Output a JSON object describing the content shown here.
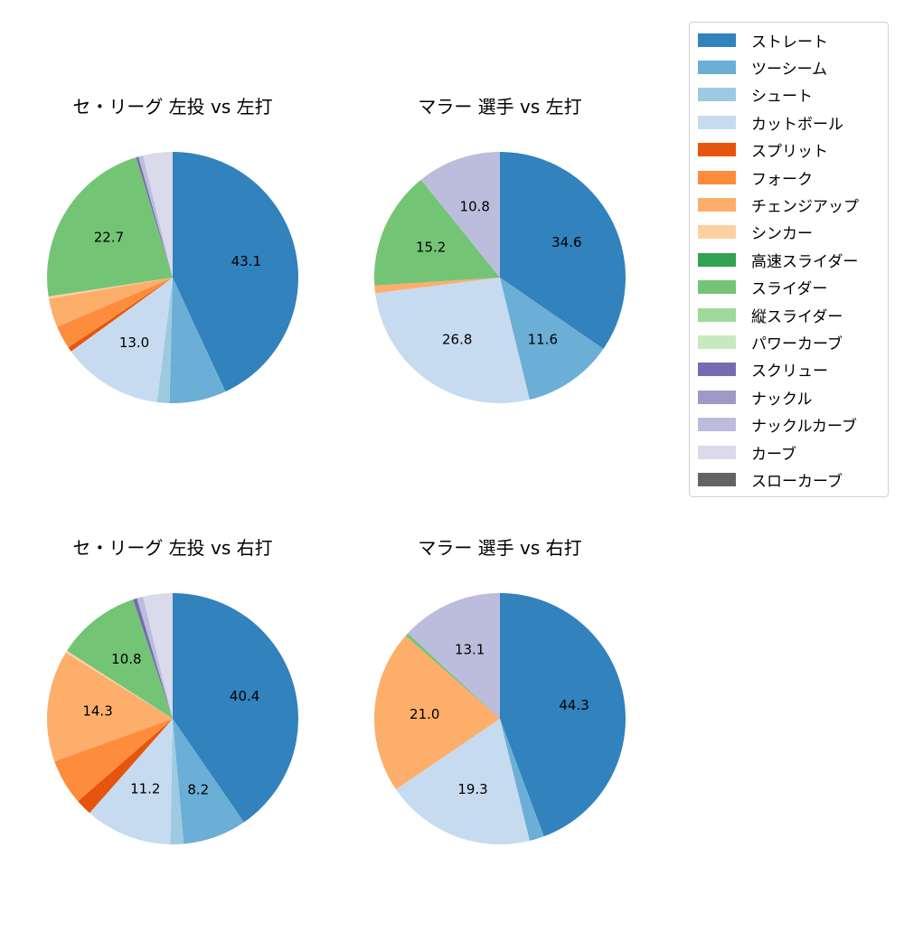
{
  "chart_data": [
    {
      "type": "pie",
      "title": "セ・リーグ 左投 vs 左打",
      "categories": [
        "ストレート",
        "ツーシーム",
        "シュート",
        "カットボール",
        "スプリット",
        "フォーク",
        "チェンジアップ",
        "シンカー",
        "スライダー",
        "スクリュー",
        "ナックルカーブ",
        "カーブ"
      ],
      "values": [
        43.1,
        7.3,
        1.6,
        13.0,
        0.6,
        3.0,
        3.7,
        0.3,
        22.7,
        0.3,
        0.6,
        3.8
      ],
      "labels_shown": [
        "43.1",
        "",
        "",
        "13.0",
        "",
        "",
        "",
        "",
        "22.7",
        "",
        "",
        ""
      ],
      "start_angle": 90,
      "direction": "clockwise"
    },
    {
      "type": "pie",
      "title": "マラー 選手 vs 左打",
      "categories": [
        "ストレート",
        "ツーシーム",
        "カットボール",
        "チェンジアップ",
        "スライダー",
        "ナックルカーブ"
      ],
      "values": [
        34.6,
        11.6,
        26.8,
        1.0,
        15.2,
        10.8
      ],
      "labels_shown": [
        "34.6",
        "11.6",
        "26.8",
        "",
        "15.2",
        "10.8"
      ],
      "start_angle": 90,
      "direction": "clockwise"
    },
    {
      "type": "pie",
      "title": "セ・リーグ 左投 vs 右打",
      "categories": [
        "ストレート",
        "ツーシーム",
        "シュート",
        "カットボール",
        "スプリット",
        "フォーク",
        "チェンジアップ",
        "シンカー",
        "スライダー",
        "スクリュー",
        "ナックルカーブ",
        "カーブ"
      ],
      "values": [
        40.4,
        8.2,
        1.7,
        11.2,
        2.1,
        5.9,
        14.3,
        0.3,
        10.8,
        0.5,
        0.8,
        3.8
      ],
      "labels_shown": [
        "40.4",
        "8.2",
        "",
        "11.2",
        "",
        "",
        "14.3",
        "",
        "10.8",
        "",
        "",
        ""
      ],
      "start_angle": 90,
      "direction": "clockwise"
    },
    {
      "type": "pie",
      "title": "マラー 選手 vs 右打",
      "categories": [
        "ストレート",
        "ツーシーム",
        "カットボール",
        "チェンジアップ",
        "スライダー",
        "ナックルカーブ"
      ],
      "values": [
        44.3,
        1.9,
        19.3,
        21.0,
        0.4,
        13.1
      ],
      "labels_shown": [
        "44.3",
        "",
        "19.3",
        "21.0",
        "",
        "13.1"
      ],
      "start_angle": 90,
      "direction": "clockwise"
    }
  ],
  "legend": {
    "items": [
      {
        "label": "ストレート",
        "color": "#3182bd"
      },
      {
        "label": "ツーシーム",
        "color": "#6baed6"
      },
      {
        "label": "シュート",
        "color": "#9ecae1"
      },
      {
        "label": "カットボール",
        "color": "#c6dbef"
      },
      {
        "label": "スプリット",
        "color": "#e6550d"
      },
      {
        "label": "フォーク",
        "color": "#fd8d3c"
      },
      {
        "label": "チェンジアップ",
        "color": "#fdae6b"
      },
      {
        "label": "シンカー",
        "color": "#fdd0a2"
      },
      {
        "label": "高速スライダー",
        "color": "#31a354"
      },
      {
        "label": "スライダー",
        "color": "#74c476"
      },
      {
        "label": "縦スライダー",
        "color": "#a1d99b"
      },
      {
        "label": "パワーカーブ",
        "color": "#c7e9c0"
      },
      {
        "label": "スクリュー",
        "color": "#756bb1"
      },
      {
        "label": "ナックル",
        "color": "#9e9ac8"
      },
      {
        "label": "ナックルカーブ",
        "color": "#bcbddc"
      },
      {
        "label": "カーブ",
        "color": "#dadaeb"
      },
      {
        "label": "スローカーブ",
        "color": "#636363"
      }
    ]
  },
  "panels": [
    {
      "title": "セ・リーグ 左投 vs 左打"
    },
    {
      "title": "マラー 選手 vs 左打"
    },
    {
      "title": "セ・リーグ 左投 vs 右打"
    },
    {
      "title": "マラー 選手 vs 右打"
    }
  ]
}
